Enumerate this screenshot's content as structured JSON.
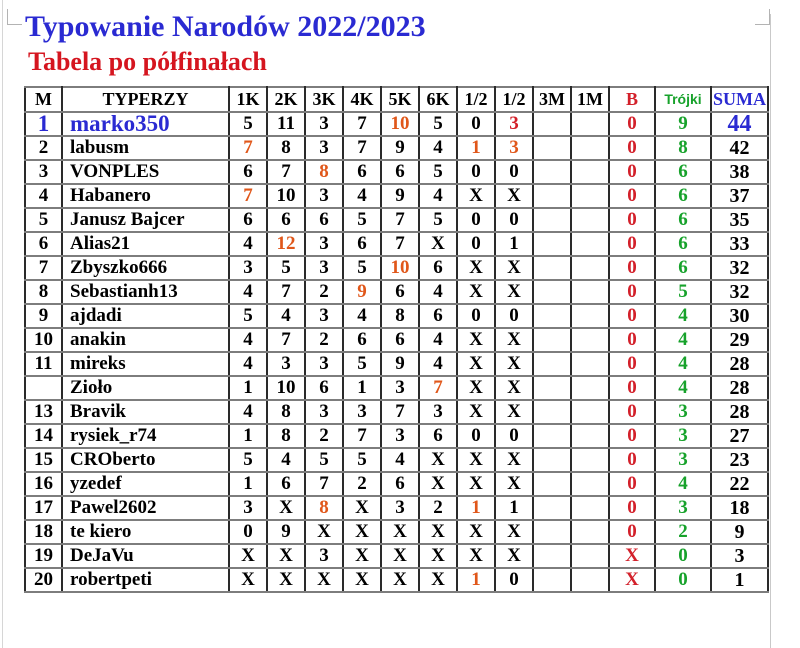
{
  "page": {
    "title": "Typowanie Narodów 2022/2023",
    "subtitle": "Tabela po półfinałach"
  },
  "palette": {
    "black": "#000000",
    "blue": "#2a2ad2",
    "red": "#d3202a",
    "orange": "#e0571a",
    "green": "#17a22b",
    "title_blue": "#2a2ad2",
    "subtitle_red": "#d5151f"
  },
  "table": {
    "headers": [
      {
        "label": "M",
        "color": ""
      },
      {
        "label": "TYPERZY",
        "color": ""
      },
      {
        "label": "1K",
        "color": ""
      },
      {
        "label": "2K",
        "color": ""
      },
      {
        "label": "3K",
        "color": ""
      },
      {
        "label": "4K",
        "color": ""
      },
      {
        "label": "5K",
        "color": ""
      },
      {
        "label": "6K",
        "color": ""
      },
      {
        "label": "1/2",
        "color": ""
      },
      {
        "label": "1/2",
        "color": ""
      },
      {
        "label": "3M",
        "color": ""
      },
      {
        "label": "1M",
        "color": ""
      },
      {
        "label": "B",
        "color": "red"
      },
      {
        "label": "Trójki",
        "color": "green",
        "font": "sans"
      },
      {
        "label": "SUMA",
        "color": "blue"
      }
    ],
    "rows": [
      {
        "top": true,
        "m": [
          "1",
          "blue"
        ],
        "name": [
          "marko350",
          "blue"
        ],
        "scores": [
          [
            "5",
            ""
          ],
          [
            "11",
            ""
          ],
          [
            "3",
            ""
          ],
          [
            "7",
            ""
          ],
          [
            "10",
            "orange"
          ],
          [
            "5",
            ""
          ],
          [
            "0",
            ""
          ],
          [
            "3",
            "red"
          ],
          [
            "",
            ""
          ],
          [
            "",
            ""
          ]
        ],
        "b": [
          "0",
          "red"
        ],
        "trojki": [
          "9",
          "green"
        ],
        "suma": [
          "44",
          "blue"
        ]
      },
      {
        "m": [
          "2",
          ""
        ],
        "name": [
          "labusm",
          ""
        ],
        "scores": [
          [
            "7",
            "orange"
          ],
          [
            "8",
            ""
          ],
          [
            "3",
            ""
          ],
          [
            "7",
            ""
          ],
          [
            "9",
            ""
          ],
          [
            "4",
            ""
          ],
          [
            "1",
            "orange"
          ],
          [
            "3",
            "orange"
          ],
          [
            "",
            ""
          ],
          [
            "",
            ""
          ]
        ],
        "b": [
          "0",
          "red"
        ],
        "trojki": [
          "8",
          "green"
        ],
        "suma": [
          "42",
          ""
        ]
      },
      {
        "m": [
          "3",
          ""
        ],
        "name": [
          "VONPLES",
          ""
        ],
        "scores": [
          [
            "6",
            ""
          ],
          [
            "7",
            ""
          ],
          [
            "8",
            "orange"
          ],
          [
            "6",
            ""
          ],
          [
            "6",
            ""
          ],
          [
            "5",
            ""
          ],
          [
            "0",
            ""
          ],
          [
            "0",
            ""
          ],
          [
            "",
            ""
          ],
          [
            "",
            ""
          ]
        ],
        "b": [
          "0",
          "red"
        ],
        "trojki": [
          "6",
          "green"
        ],
        "suma": [
          "38",
          ""
        ]
      },
      {
        "m": [
          "4",
          ""
        ],
        "name": [
          "Habanero",
          ""
        ],
        "scores": [
          [
            "7",
            "orange"
          ],
          [
            "10",
            ""
          ],
          [
            "3",
            ""
          ],
          [
            "4",
            ""
          ],
          [
            "9",
            ""
          ],
          [
            "4",
            ""
          ],
          [
            "X",
            ""
          ],
          [
            "X",
            ""
          ],
          [
            "",
            ""
          ],
          [
            "",
            ""
          ]
        ],
        "b": [
          "0",
          "red"
        ],
        "trojki": [
          "6",
          "green"
        ],
        "suma": [
          "37",
          ""
        ]
      },
      {
        "m": [
          "5",
          ""
        ],
        "name": [
          "Janusz Bajcer",
          ""
        ],
        "scores": [
          [
            "6",
            ""
          ],
          [
            "6",
            ""
          ],
          [
            "6",
            ""
          ],
          [
            "5",
            ""
          ],
          [
            "7",
            ""
          ],
          [
            "5",
            ""
          ],
          [
            "0",
            ""
          ],
          [
            "0",
            ""
          ],
          [
            "",
            ""
          ],
          [
            "",
            ""
          ]
        ],
        "b": [
          "0",
          "red"
        ],
        "trojki": [
          "6",
          "green"
        ],
        "suma": [
          "35",
          ""
        ]
      },
      {
        "m": [
          "6",
          ""
        ],
        "name": [
          "Alias21",
          ""
        ],
        "scores": [
          [
            "4",
            ""
          ],
          [
            "12",
            "orange"
          ],
          [
            "3",
            ""
          ],
          [
            "6",
            ""
          ],
          [
            "7",
            ""
          ],
          [
            "X",
            ""
          ],
          [
            "0",
            ""
          ],
          [
            "1",
            ""
          ],
          [
            "",
            ""
          ],
          [
            "",
            ""
          ]
        ],
        "b": [
          "0",
          "red"
        ],
        "trojki": [
          "6",
          "green"
        ],
        "suma": [
          "33",
          ""
        ]
      },
      {
        "m": [
          "7",
          ""
        ],
        "name": [
          "Zbyszko666",
          ""
        ],
        "scores": [
          [
            "3",
            ""
          ],
          [
            "5",
            ""
          ],
          [
            "3",
            ""
          ],
          [
            "5",
            ""
          ],
          [
            "10",
            "orange"
          ],
          [
            "6",
            ""
          ],
          [
            "X",
            ""
          ],
          [
            "X",
            ""
          ],
          [
            "",
            ""
          ],
          [
            "",
            ""
          ]
        ],
        "b": [
          "0",
          "red"
        ],
        "trojki": [
          "6",
          "green"
        ],
        "suma": [
          "32",
          ""
        ]
      },
      {
        "m": [
          "8",
          ""
        ],
        "name": [
          "Sebastianh13",
          ""
        ],
        "scores": [
          [
            "4",
            ""
          ],
          [
            "7",
            ""
          ],
          [
            "2",
            ""
          ],
          [
            "9",
            "orange"
          ],
          [
            "6",
            ""
          ],
          [
            "4",
            ""
          ],
          [
            "X",
            ""
          ],
          [
            "X",
            ""
          ],
          [
            "",
            ""
          ],
          [
            "",
            ""
          ]
        ],
        "b": [
          "0",
          "red"
        ],
        "trojki": [
          "5",
          "green"
        ],
        "suma": [
          "32",
          ""
        ]
      },
      {
        "m": [
          "9",
          ""
        ],
        "name": [
          "ajdadi",
          ""
        ],
        "scores": [
          [
            "5",
            ""
          ],
          [
            "4",
            ""
          ],
          [
            "3",
            ""
          ],
          [
            "4",
            ""
          ],
          [
            "8",
            ""
          ],
          [
            "6",
            ""
          ],
          [
            "0",
            ""
          ],
          [
            "0",
            ""
          ],
          [
            "",
            ""
          ],
          [
            "",
            ""
          ]
        ],
        "b": [
          "0",
          "red"
        ],
        "trojki": [
          "4",
          "green"
        ],
        "suma": [
          "30",
          ""
        ]
      },
      {
        "m": [
          "10",
          ""
        ],
        "name": [
          "anakin",
          ""
        ],
        "scores": [
          [
            "4",
            ""
          ],
          [
            "7",
            ""
          ],
          [
            "2",
            ""
          ],
          [
            "6",
            ""
          ],
          [
            "6",
            ""
          ],
          [
            "4",
            ""
          ],
          [
            "X",
            ""
          ],
          [
            "X",
            ""
          ],
          [
            "",
            ""
          ],
          [
            "",
            ""
          ]
        ],
        "b": [
          "0",
          "red"
        ],
        "trojki": [
          "4",
          "green"
        ],
        "suma": [
          "29",
          ""
        ]
      },
      {
        "m": [
          "11",
          ""
        ],
        "name": [
          "mireks",
          ""
        ],
        "scores": [
          [
            "4",
            ""
          ],
          [
            "3",
            ""
          ],
          [
            "3",
            ""
          ],
          [
            "5",
            ""
          ],
          [
            "9",
            ""
          ],
          [
            "4",
            ""
          ],
          [
            "X",
            ""
          ],
          [
            "X",
            ""
          ],
          [
            "",
            ""
          ],
          [
            "",
            ""
          ]
        ],
        "b": [
          "0",
          "red"
        ],
        "trojki": [
          "4",
          "green"
        ],
        "suma": [
          "28",
          ""
        ]
      },
      {
        "m": [
          "",
          ""
        ],
        "name": [
          "Zioło",
          ""
        ],
        "scores": [
          [
            "1",
            ""
          ],
          [
            "10",
            ""
          ],
          [
            "6",
            ""
          ],
          [
            "1",
            ""
          ],
          [
            "3",
            ""
          ],
          [
            "7",
            "orange"
          ],
          [
            "X",
            ""
          ],
          [
            "X",
            ""
          ],
          [
            "",
            ""
          ],
          [
            "",
            ""
          ]
        ],
        "b": [
          "0",
          "red"
        ],
        "trojki": [
          "4",
          "green"
        ],
        "suma": [
          "28",
          ""
        ]
      },
      {
        "m": [
          "13",
          ""
        ],
        "name": [
          "Bravik",
          ""
        ],
        "scores": [
          [
            "4",
            ""
          ],
          [
            "8",
            ""
          ],
          [
            "3",
            ""
          ],
          [
            "3",
            ""
          ],
          [
            "7",
            ""
          ],
          [
            "3",
            ""
          ],
          [
            "X",
            ""
          ],
          [
            "X",
            ""
          ],
          [
            "",
            ""
          ],
          [
            "",
            ""
          ]
        ],
        "b": [
          "0",
          "red"
        ],
        "trojki": [
          "3",
          "green"
        ],
        "suma": [
          "28",
          ""
        ]
      },
      {
        "m": [
          "14",
          ""
        ],
        "name": [
          "rysiek_r74",
          ""
        ],
        "scores": [
          [
            "1",
            ""
          ],
          [
            "8",
            ""
          ],
          [
            "2",
            ""
          ],
          [
            "7",
            ""
          ],
          [
            "3",
            ""
          ],
          [
            "6",
            ""
          ],
          [
            "0",
            ""
          ],
          [
            "0",
            ""
          ],
          [
            "",
            ""
          ],
          [
            "",
            ""
          ]
        ],
        "b": [
          "0",
          "red"
        ],
        "trojki": [
          "3",
          "green"
        ],
        "suma": [
          "27",
          ""
        ]
      },
      {
        "m": [
          "15",
          ""
        ],
        "name": [
          "CROberto",
          ""
        ],
        "scores": [
          [
            "5",
            ""
          ],
          [
            "4",
            ""
          ],
          [
            "5",
            ""
          ],
          [
            "5",
            ""
          ],
          [
            "4",
            ""
          ],
          [
            "X",
            ""
          ],
          [
            "X",
            ""
          ],
          [
            "X",
            ""
          ],
          [
            "",
            ""
          ],
          [
            "",
            ""
          ]
        ],
        "b": [
          "0",
          "red"
        ],
        "trojki": [
          "3",
          "green"
        ],
        "suma": [
          "23",
          ""
        ]
      },
      {
        "m": [
          "16",
          ""
        ],
        "name": [
          "yzedef",
          ""
        ],
        "scores": [
          [
            "1",
            ""
          ],
          [
            "6",
            ""
          ],
          [
            "7",
            ""
          ],
          [
            "2",
            ""
          ],
          [
            "6",
            ""
          ],
          [
            "X",
            ""
          ],
          [
            "X",
            ""
          ],
          [
            "X",
            ""
          ],
          [
            "",
            ""
          ],
          [
            "",
            ""
          ]
        ],
        "b": [
          "0",
          "red"
        ],
        "trojki": [
          "4",
          "green"
        ],
        "suma": [
          "22",
          ""
        ]
      },
      {
        "m": [
          "17",
          ""
        ],
        "name": [
          "Pawel2602",
          ""
        ],
        "scores": [
          [
            "3",
            ""
          ],
          [
            "X",
            ""
          ],
          [
            "8",
            "orange"
          ],
          [
            "X",
            ""
          ],
          [
            "3",
            ""
          ],
          [
            "2",
            ""
          ],
          [
            "1",
            "orange"
          ],
          [
            "1",
            ""
          ],
          [
            "",
            ""
          ],
          [
            "",
            ""
          ]
        ],
        "b": [
          "0",
          "red"
        ],
        "trojki": [
          "3",
          "green"
        ],
        "suma": [
          "18",
          ""
        ]
      },
      {
        "m": [
          "18",
          ""
        ],
        "name": [
          "te kiero",
          ""
        ],
        "scores": [
          [
            "0",
            ""
          ],
          [
            "9",
            ""
          ],
          [
            "X",
            ""
          ],
          [
            "X",
            ""
          ],
          [
            "X",
            ""
          ],
          [
            "X",
            ""
          ],
          [
            "X",
            ""
          ],
          [
            "X",
            ""
          ],
          [
            "",
            ""
          ],
          [
            "",
            ""
          ]
        ],
        "b": [
          "0",
          "red"
        ],
        "trojki": [
          "2",
          "green"
        ],
        "suma": [
          "9",
          ""
        ]
      },
      {
        "m": [
          "19",
          ""
        ],
        "name": [
          "DeJaVu",
          ""
        ],
        "scores": [
          [
            "X",
            ""
          ],
          [
            "X",
            ""
          ],
          [
            "3",
            ""
          ],
          [
            "X",
            ""
          ],
          [
            "X",
            ""
          ],
          [
            "X",
            ""
          ],
          [
            "X",
            ""
          ],
          [
            "X",
            ""
          ],
          [
            "",
            ""
          ],
          [
            "",
            ""
          ]
        ],
        "b": [
          "X",
          "red"
        ],
        "trojki": [
          "0",
          "green"
        ],
        "suma": [
          "3",
          ""
        ]
      },
      {
        "m": [
          "20",
          ""
        ],
        "name": [
          "robertpeti",
          ""
        ],
        "scores": [
          [
            "X",
            ""
          ],
          [
            "X",
            ""
          ],
          [
            "X",
            ""
          ],
          [
            "X",
            ""
          ],
          [
            "X",
            ""
          ],
          [
            "X",
            ""
          ],
          [
            "1",
            "orange"
          ],
          [
            "0",
            ""
          ],
          [
            "",
            ""
          ],
          [
            "",
            ""
          ]
        ],
        "b": [
          "X",
          "red"
        ],
        "trojki": [
          "0",
          "green"
        ],
        "suma": [
          "1",
          ""
        ]
      }
    ]
  }
}
